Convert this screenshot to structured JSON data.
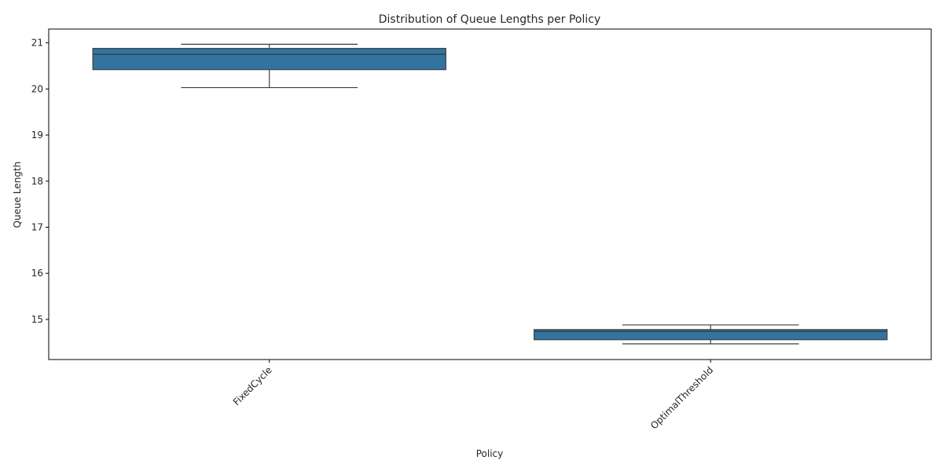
{
  "chart_data": {
    "type": "box",
    "title": "Distribution of Queue Lengths per Policy",
    "xlabel": "Policy",
    "ylabel": "Queue Length",
    "categories": [
      "FixedCycle",
      "OptimalThreshold"
    ],
    "boxes": [
      {
        "category": "FixedCycle",
        "whisker_low": 20.03,
        "q1": 20.42,
        "median": 20.75,
        "q3": 20.88,
        "whisker_high": 20.97
      },
      {
        "category": "OptimalThreshold",
        "whisker_low": 14.47,
        "q1": 14.56,
        "median": 14.74,
        "q3": 14.78,
        "whisker_high": 14.88
      }
    ],
    "ylim": [
      14.13,
      21.3
    ],
    "yticks": [
      15,
      16,
      17,
      18,
      19,
      20,
      21
    ],
    "box_color": "#3274a1",
    "line_color": "#3f3f3f",
    "grid": false,
    "legend": "none"
  }
}
